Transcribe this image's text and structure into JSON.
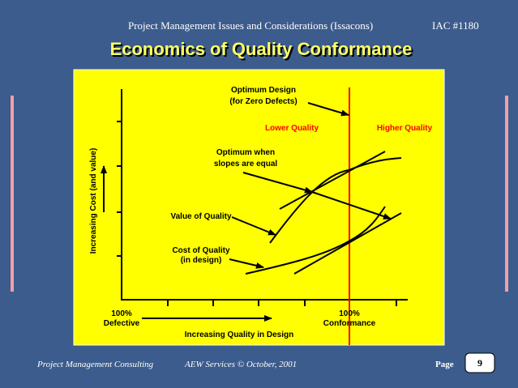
{
  "header": {
    "left": "Project Management Issues and Considerations (Issacons)",
    "right": "IAC #1180"
  },
  "title": "Economics of Quality Conformance",
  "diagram": {
    "optimum_design": [
      "Optimum Design",
      "(for Zero Defects)"
    ],
    "lower_quality": "Lower Quality",
    "higher_quality": "Higher Quality",
    "optimum_slopes": [
      "Optimum when",
      "slopes are equal"
    ],
    "value_of_quality": "Value of Quality",
    "cost_of_quality": [
      "Cost of Quality",
      "(in design)"
    ],
    "y_axis_label": "Increasing Cost (and value)",
    "x_axis_label": "Increasing Quality in Design",
    "x_left": [
      "100%",
      "Defective"
    ],
    "x_right": [
      "100%",
      "Conformance"
    ]
  },
  "footer": {
    "left": "Project Management Consulting",
    "center": "AEW Services © October, 2001",
    "page_label": "Page",
    "page_number": "9"
  }
}
